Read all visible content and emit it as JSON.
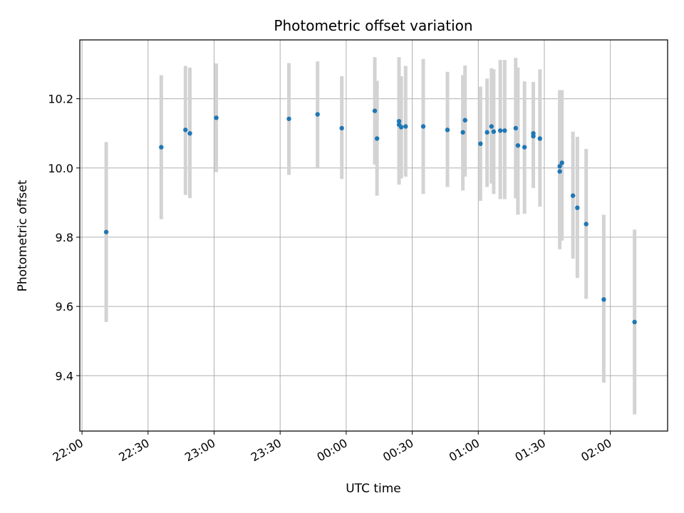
{
  "chart_data": {
    "type": "scatter",
    "title": "Photometric offset variation",
    "xlabel": "UTC time",
    "ylabel": "Photometric offset",
    "x_ticks": [
      "22:00",
      "22:30",
      "23:00",
      "23:30",
      "00:00",
      "00:30",
      "01:00",
      "01:30",
      "02:00"
    ],
    "y_ticks": [
      "9.4",
      "9.6",
      "9.8",
      "10.0",
      "10.2"
    ],
    "xlim": [
      "21:59",
      "02:26"
    ],
    "ylim": [
      9.24,
      10.37
    ],
    "grid": true,
    "colors": {
      "point": "#1f77b4",
      "errorbar": "#d3d3d3",
      "grid": "#b0b0b0"
    },
    "points": [
      {
        "t": "22:11",
        "y": 9.815,
        "lo": 9.555,
        "hi": 10.075
      },
      {
        "t": "22:36",
        "y": 10.06,
        "lo": 9.852,
        "hi": 10.268
      },
      {
        "t": "22:47",
        "y": 10.11,
        "lo": 9.922,
        "hi": 10.295
      },
      {
        "t": "22:49",
        "y": 10.1,
        "lo": 9.913,
        "hi": 10.29
      },
      {
        "t": "23:01",
        "y": 10.145,
        "lo": 9.988,
        "hi": 10.302
      },
      {
        "t": "23:34",
        "y": 10.142,
        "lo": 9.98,
        "hi": 10.303
      },
      {
        "t": "23:47",
        "y": 10.155,
        "lo": 10.0,
        "hi": 10.308
      },
      {
        "t": "23:58",
        "y": 10.115,
        "lo": 9.968,
        "hi": 10.265
      },
      {
        "t": "00:13",
        "y": 10.165,
        "lo": 10.01,
        "hi": 10.32
      },
      {
        "t": "00:14",
        "y": 10.085,
        "lo": 9.92,
        "hi": 10.252
      },
      {
        "t": "00:24",
        "y": 10.135,
        "lo": 9.952,
        "hi": 10.32
      },
      {
        "t": "00:24",
        "y": 10.125,
        "lo": 9.96,
        "hi": 10.29
      },
      {
        "t": "00:25",
        "y": 10.118,
        "lo": 9.97,
        "hi": 10.265
      },
      {
        "t": "00:27",
        "y": 10.12,
        "lo": 9.975,
        "hi": 10.295
      },
      {
        "t": "00:35",
        "y": 10.12,
        "lo": 9.925,
        "hi": 10.315
      },
      {
        "t": "00:46",
        "y": 10.11,
        "lo": 9.945,
        "hi": 10.278
      },
      {
        "t": "00:53",
        "y": 10.103,
        "lo": 9.935,
        "hi": 10.268
      },
      {
        "t": "00:54",
        "y": 10.138,
        "lo": 9.975,
        "hi": 10.296
      },
      {
        "t": "01:01",
        "y": 10.07,
        "lo": 9.905,
        "hi": 10.235
      },
      {
        "t": "01:04",
        "y": 10.103,
        "lo": 9.945,
        "hi": 10.258
      },
      {
        "t": "01:06",
        "y": 10.12,
        "lo": 9.955,
        "hi": 10.288
      },
      {
        "t": "01:07",
        "y": 10.105,
        "lo": 9.925,
        "hi": 10.285
      },
      {
        "t": "01:10",
        "y": 10.108,
        "lo": 9.91,
        "hi": 10.312
      },
      {
        "t": "01:12",
        "y": 10.108,
        "lo": 9.91,
        "hi": 10.312
      },
      {
        "t": "01:17",
        "y": 10.115,
        "lo": 9.912,
        "hi": 10.318
      },
      {
        "t": "01:18",
        "y": 10.065,
        "lo": 9.865,
        "hi": 10.29
      },
      {
        "t": "01:21",
        "y": 10.06,
        "lo": 9.868,
        "hi": 10.25
      },
      {
        "t": "01:25",
        "y": 10.1,
        "lo": 9.942,
        "hi": 10.248
      },
      {
        "t": "01:25",
        "y": 10.092,
        "lo": 9.942,
        "hi": 10.248
      },
      {
        "t": "01:28",
        "y": 10.085,
        "lo": 9.888,
        "hi": 10.285
      },
      {
        "t": "01:37",
        "y": 9.99,
        "lo": 9.765,
        "hi": 10.225
      },
      {
        "t": "01:37",
        "y": 10.005,
        "lo": 9.782,
        "hi": 10.218
      },
      {
        "t": "01:38",
        "y": 10.015,
        "lo": 9.79,
        "hi": 10.225
      },
      {
        "t": "01:43",
        "y": 9.92,
        "lo": 9.738,
        "hi": 10.105
      },
      {
        "t": "01:45",
        "y": 9.885,
        "lo": 9.682,
        "hi": 10.09
      },
      {
        "t": "01:49",
        "y": 9.838,
        "lo": 9.622,
        "hi": 10.055
      },
      {
        "t": "01:57",
        "y": 9.62,
        "lo": 9.38,
        "hi": 9.865
      },
      {
        "t": "02:11",
        "y": 9.555,
        "lo": 9.288,
        "hi": 9.822
      }
    ]
  }
}
